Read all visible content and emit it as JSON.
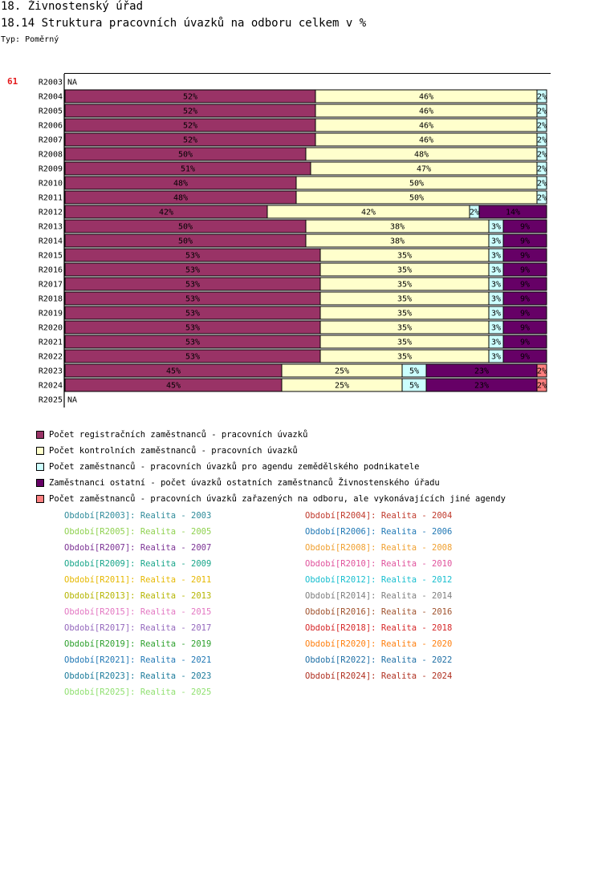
{
  "page_title": "18. Živnostenský úřad",
  "chart_data": {
    "type": "bar",
    "orientation": "horizontal",
    "stacked": true,
    "normalized": true,
    "title": "18.14 Struktura pracovních úvazků na odboru celkem v %",
    "type_label": "Typ: Poměrný",
    "chart_id": "61",
    "na_label": "NA",
    "categories": [
      "R2003",
      "R2004",
      "R2005",
      "R2006",
      "R2007",
      "R2008",
      "R2009",
      "R2010",
      "R2011",
      "R2012",
      "R2013",
      "R2014",
      "R2015",
      "R2016",
      "R2017",
      "R2018",
      "R2019",
      "R2020",
      "R2021",
      "R2022",
      "R2023",
      "R2024",
      "R2025"
    ],
    "series": [
      {
        "name": "Počet registračních zaměstnanců - pracovních úvazků",
        "color": "#993366",
        "values": [
          null,
          52,
          52,
          52,
          52,
          50,
          51,
          48,
          48,
          42,
          50,
          50,
          53,
          53,
          53,
          53,
          53,
          53,
          53,
          53,
          45,
          45,
          null
        ]
      },
      {
        "name": "Počet kontrolních zaměstnanců - pracovních úvazků",
        "color": "#ffffcc",
        "values": [
          null,
          46,
          46,
          46,
          46,
          48,
          47,
          50,
          50,
          42,
          38,
          38,
          35,
          35,
          35,
          35,
          35,
          35,
          35,
          35,
          25,
          25,
          null
        ]
      },
      {
        "name": "Počet zaměstnanců - pracovních úvazků pro agendu zemědělského podnikatele",
        "color": "#ccffff",
        "values": [
          null,
          2,
          2,
          2,
          2,
          2,
          2,
          2,
          2,
          2,
          3,
          3,
          3,
          3,
          3,
          3,
          3,
          3,
          3,
          3,
          5,
          5,
          null
        ]
      },
      {
        "name": "Zaměstnanci ostatní - počet úvazků ostatních zaměstnanců Živnostenského úřadu",
        "color": "#660066",
        "values": [
          null,
          0,
          0,
          0,
          0,
          0,
          0,
          0,
          0,
          14,
          9,
          9,
          9,
          9,
          9,
          9,
          9,
          9,
          9,
          9,
          23,
          23,
          null
        ]
      },
      {
        "name": "Počet zaměstnanců - pracovních úvazků zařazených na odboru, ale vykonávajících jiné agendy",
        "color": "#ff8080",
        "values": [
          null,
          0,
          0,
          0,
          0,
          0,
          0,
          0,
          0,
          0,
          0,
          0,
          0,
          0,
          0,
          0,
          0,
          0,
          0,
          0,
          2,
          2,
          null
        ]
      }
    ],
    "xlim": [
      0,
      100
    ]
  },
  "periods": [
    {
      "text": "Období[R2003]: Realita - 2003",
      "color": "#2e8b9a"
    },
    {
      "text": "Období[R2004]: Realita - 2004",
      "color": "#c0392b"
    },
    {
      "text": "Období[R2005]: Realita - 2005",
      "color": "#8fd14f"
    },
    {
      "text": "Období[R2006]: Realita - 2006",
      "color": "#1f77b4"
    },
    {
      "text": "Období[R2007]: Realita - 2007",
      "color": "#7b3294"
    },
    {
      "text": "Období[R2008]: Realita - 2008",
      "color": "#f0a030"
    },
    {
      "text": "Období[R2009]: Realita - 2009",
      "color": "#17a589"
    },
    {
      "text": "Období[R2010]: Realita - 2010",
      "color": "#e0529c"
    },
    {
      "text": "Období[R2011]: Realita - 2011",
      "color": "#e6b800"
    },
    {
      "text": "Období[R2012]: Realita - 2012",
      "color": "#17becf"
    },
    {
      "text": "Období[R2013]: Realita - 2013",
      "color": "#b5b500"
    },
    {
      "text": "Období[R2014]: Realita - 2014",
      "color": "#7f7f7f"
    },
    {
      "text": "Období[R2015]: Realita - 2015",
      "color": "#e377c2"
    },
    {
      "text": "Období[R2016]: Realita - 2016",
      "color": "#a0522d"
    },
    {
      "text": "Období[R2017]: Realita - 2017",
      "color": "#9467bd"
    },
    {
      "text": "Období[R2018]: Realita - 2018",
      "color": "#d62728"
    },
    {
      "text": "Období[R2019]: Realita - 2019",
      "color": "#2ca02c"
    },
    {
      "text": "Období[R2020]: Realita - 2020",
      "color": "#ff7f0e"
    },
    {
      "text": "Období[R2021]: Realita - 2021",
      "color": "#1f77b4"
    },
    {
      "text": "Období[R2022]: Realita - 2022",
      "color": "#1f6fa5"
    },
    {
      "text": "Období[R2023]: Realita - 2023",
      "color": "#1a7a9a"
    },
    {
      "text": "Období[R2024]: Realita - 2024",
      "color": "#b03020"
    },
    {
      "text": "Období[R2025]: Realita - 2025",
      "color": "#90e070"
    }
  ]
}
